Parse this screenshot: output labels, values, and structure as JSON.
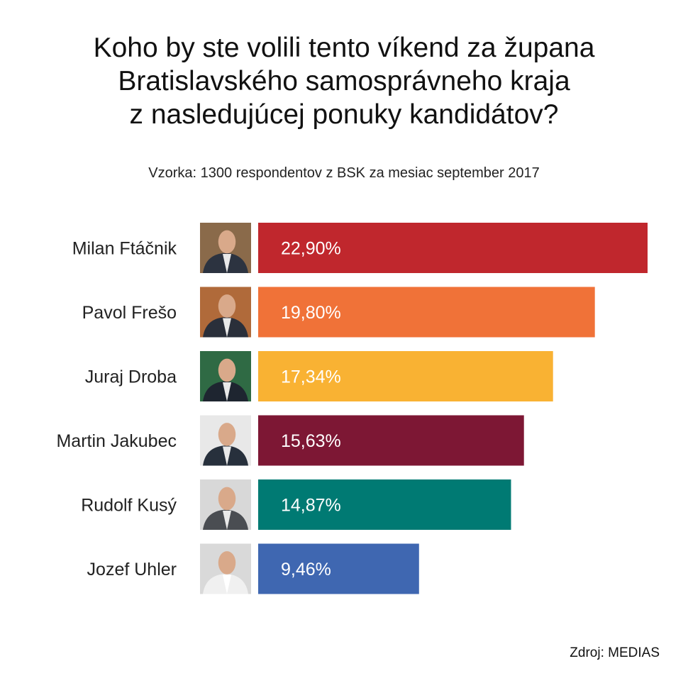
{
  "chart_data": {
    "type": "bar",
    "orientation": "horizontal",
    "title": "Koho by ste volili tento víkend za župana Bratislavského samosprávneho kraja z nasledujúcej ponuky kandidátov?",
    "title_lines": [
      "Koho by ste volili tento víkend za župana",
      "Bratislavského samosprávneho kraja",
      "z nasledujúcej ponuky kandidátov?"
    ],
    "subtitle": "Vzorka: 1300 respondentov z BSK za mesiac september 2017",
    "source": "Zdroj: MEDIAS",
    "categories": [
      "Milan Ftáčnik",
      "Pavol Frešo",
      "Juraj Droba",
      "Martin Jakubec",
      "Rudolf Kusý",
      "Jozef Uhler"
    ],
    "values": [
      22.9,
      19.8,
      17.34,
      15.63,
      14.87,
      9.46
    ],
    "value_labels": [
      "22,90%",
      "19,80%",
      "17,34%",
      "15,63%",
      "14,87%",
      "9,46%"
    ],
    "colors": [
      "#c0272d",
      "#f07238",
      "#f9b233",
      "#7d1734",
      "#007a73",
      "#3f67b1"
    ],
    "xlim": [
      0,
      22.9
    ],
    "unit": "%",
    "grid": false,
    "legend": "none"
  }
}
